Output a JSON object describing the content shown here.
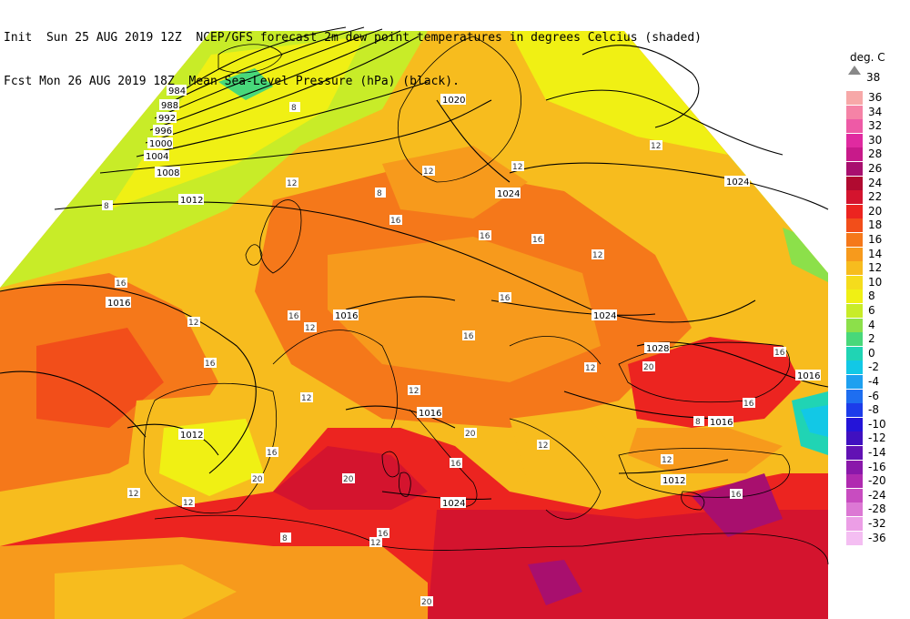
{
  "header": {
    "line1": "Init  Sun 25 AUG 2019 12Z  NCEP/GFS forecast 2m dew point temperatures in degrees Celcius (shaded)",
    "line2": "Fcst Mon 26 AUG 2019 18Z  Mean Sea-Level Pressure (hPa) (black)."
  },
  "legend": {
    "title": "deg. C",
    "top_value": "38",
    "entries": [
      {
        "label": "36",
        "color": "#f7a8a8"
      },
      {
        "label": "34",
        "color": "#f583a6"
      },
      {
        "label": "32",
        "color": "#ee5aa6"
      },
      {
        "label": "30",
        "color": "#e02aa0"
      },
      {
        "label": "28",
        "color": "#c81a8a"
      },
      {
        "label": "26",
        "color": "#a80f6e"
      },
      {
        "label": "24",
        "color": "#b00a30"
      },
      {
        "label": "22",
        "color": "#d4142e"
      },
      {
        "label": "20",
        "color": "#ec2420"
      },
      {
        "label": "18",
        "color": "#f24e1a"
      },
      {
        "label": "16",
        "color": "#f5781a"
      },
      {
        "label": "14",
        "color": "#f79a1c"
      },
      {
        "label": "12",
        "color": "#f7bc1e"
      },
      {
        "label": "10",
        "color": "#f5dc1c"
      },
      {
        "label": "8",
        "color": "#f0f014"
      },
      {
        "label": "6",
        "color": "#c8ec28"
      },
      {
        "label": "4",
        "color": "#8ce04a"
      },
      {
        "label": "2",
        "color": "#48d87a"
      },
      {
        "label": "0",
        "color": "#20d4b4"
      },
      {
        "label": "-2",
        "color": "#12c8e6"
      },
      {
        "label": "-4",
        "color": "#1ea0f0"
      },
      {
        "label": "-6",
        "color": "#1e6ef0"
      },
      {
        "label": "-8",
        "color": "#1c3cea"
      },
      {
        "label": "-10",
        "color": "#2414d8"
      },
      {
        "label": "-12",
        "color": "#4010c0"
      },
      {
        "label": "-14",
        "color": "#6212b4"
      },
      {
        "label": "-16",
        "color": "#8a18aa"
      },
      {
        "label": "-20",
        "color": "#b02ab0"
      },
      {
        "label": "-24",
        "color": "#c84cc0"
      },
      {
        "label": "-28",
        "color": "#dc78d4"
      },
      {
        "label": "-32",
        "color": "#ec9ee6"
      },
      {
        "label": "-36",
        "color": "#f4bef2"
      }
    ]
  },
  "isobar_labels": [
    "984",
    "988",
    "992",
    "996",
    "1000",
    "1004",
    "1008",
    "1012",
    "1016",
    "1020",
    "1024",
    "1012",
    "1016",
    "1016",
    "1012",
    "1024",
    "1028",
    "1016",
    "1016",
    "1012",
    "1016"
  ],
  "dewpoint_labels": [
    "8",
    "12",
    "12",
    "16",
    "12",
    "8",
    "16",
    "16",
    "12",
    "16",
    "12",
    "12",
    "16",
    "8",
    "16",
    "12",
    "16",
    "12",
    "12",
    "16",
    "20",
    "20",
    "20",
    "16",
    "12",
    "16",
    "8",
    "16",
    "12",
    "12",
    "16",
    "20",
    "16",
    "8",
    "12",
    "12",
    "16",
    "20",
    "12"
  ]
}
